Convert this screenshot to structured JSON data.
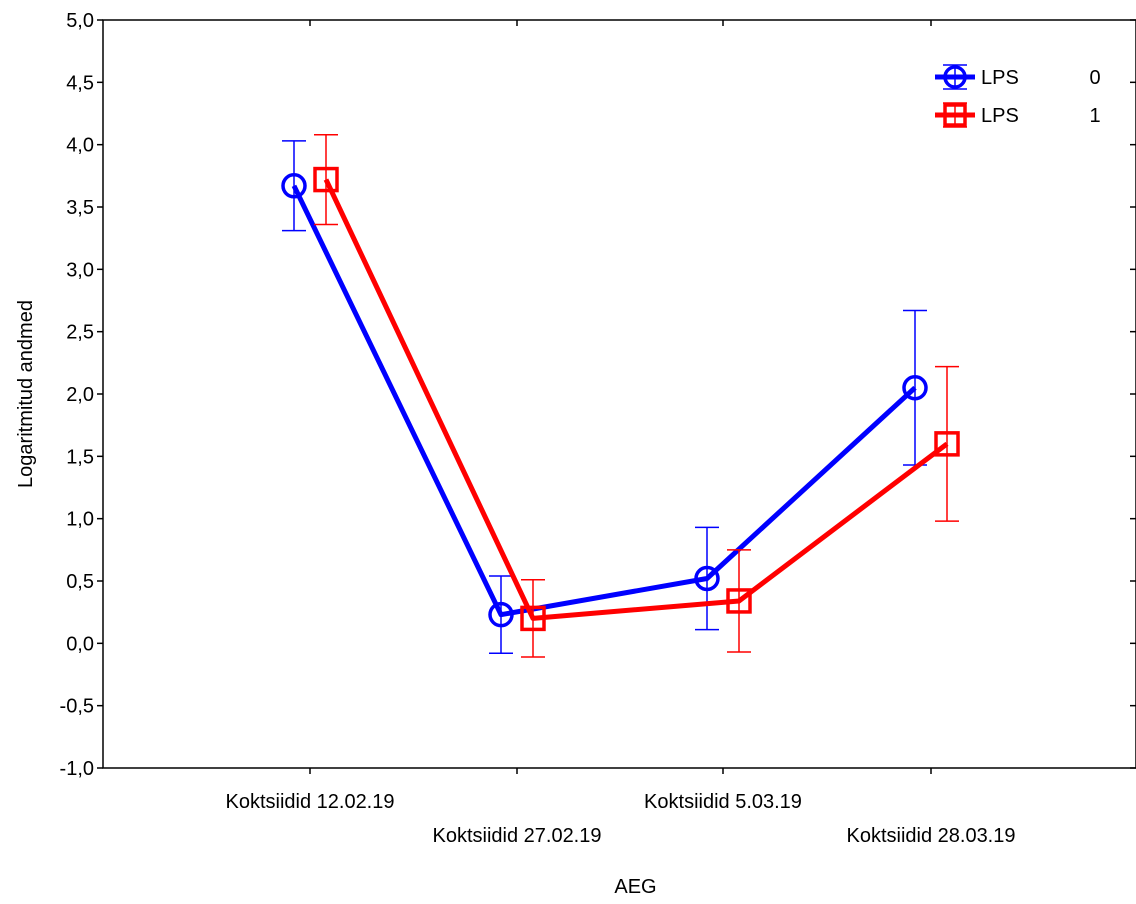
{
  "chart_data": {
    "type": "line",
    "title": "",
    "xlabel": "AEG",
    "ylabel": "Logaritmitud andmed",
    "categories": [
      "Koktsiidid 12.02.19",
      "Koktsiidid 27.02.19",
      "Koktsiidid 5.03.19",
      "Koktsiidid 28.03.19"
    ],
    "ylim": [
      -1.0,
      5.0
    ],
    "yticks": [
      -1.0,
      -0.5,
      0.0,
      0.5,
      1.0,
      1.5,
      2.0,
      2.5,
      3.0,
      3.5,
      4.0,
      4.5,
      5.0
    ],
    "ytick_labels": [
      "-1,0",
      "-0,5",
      "0,0",
      "0,5",
      "1,0",
      "1,5",
      "2,0",
      "2,5",
      "3,0",
      "3,5",
      "4,0",
      "4,5",
      "5,0"
    ],
    "grid": false,
    "legend_position": "top-right",
    "legend_title": "LPS",
    "series": [
      {
        "name": "0",
        "color": "#0000ff",
        "marker": "circle",
        "values": [
          3.67,
          0.23,
          0.52,
          2.05
        ],
        "lower": [
          3.31,
          -0.08,
          0.11,
          1.43
        ],
        "upper": [
          4.03,
          0.54,
          0.93,
          2.67
        ]
      },
      {
        "name": "1",
        "color": "#ff0000",
        "marker": "square",
        "values": [
          3.72,
          0.2,
          0.34,
          1.6
        ],
        "lower": [
          3.36,
          -0.11,
          -0.07,
          0.98
        ],
        "upper": [
          4.08,
          0.51,
          0.75,
          2.22
        ]
      }
    ]
  }
}
